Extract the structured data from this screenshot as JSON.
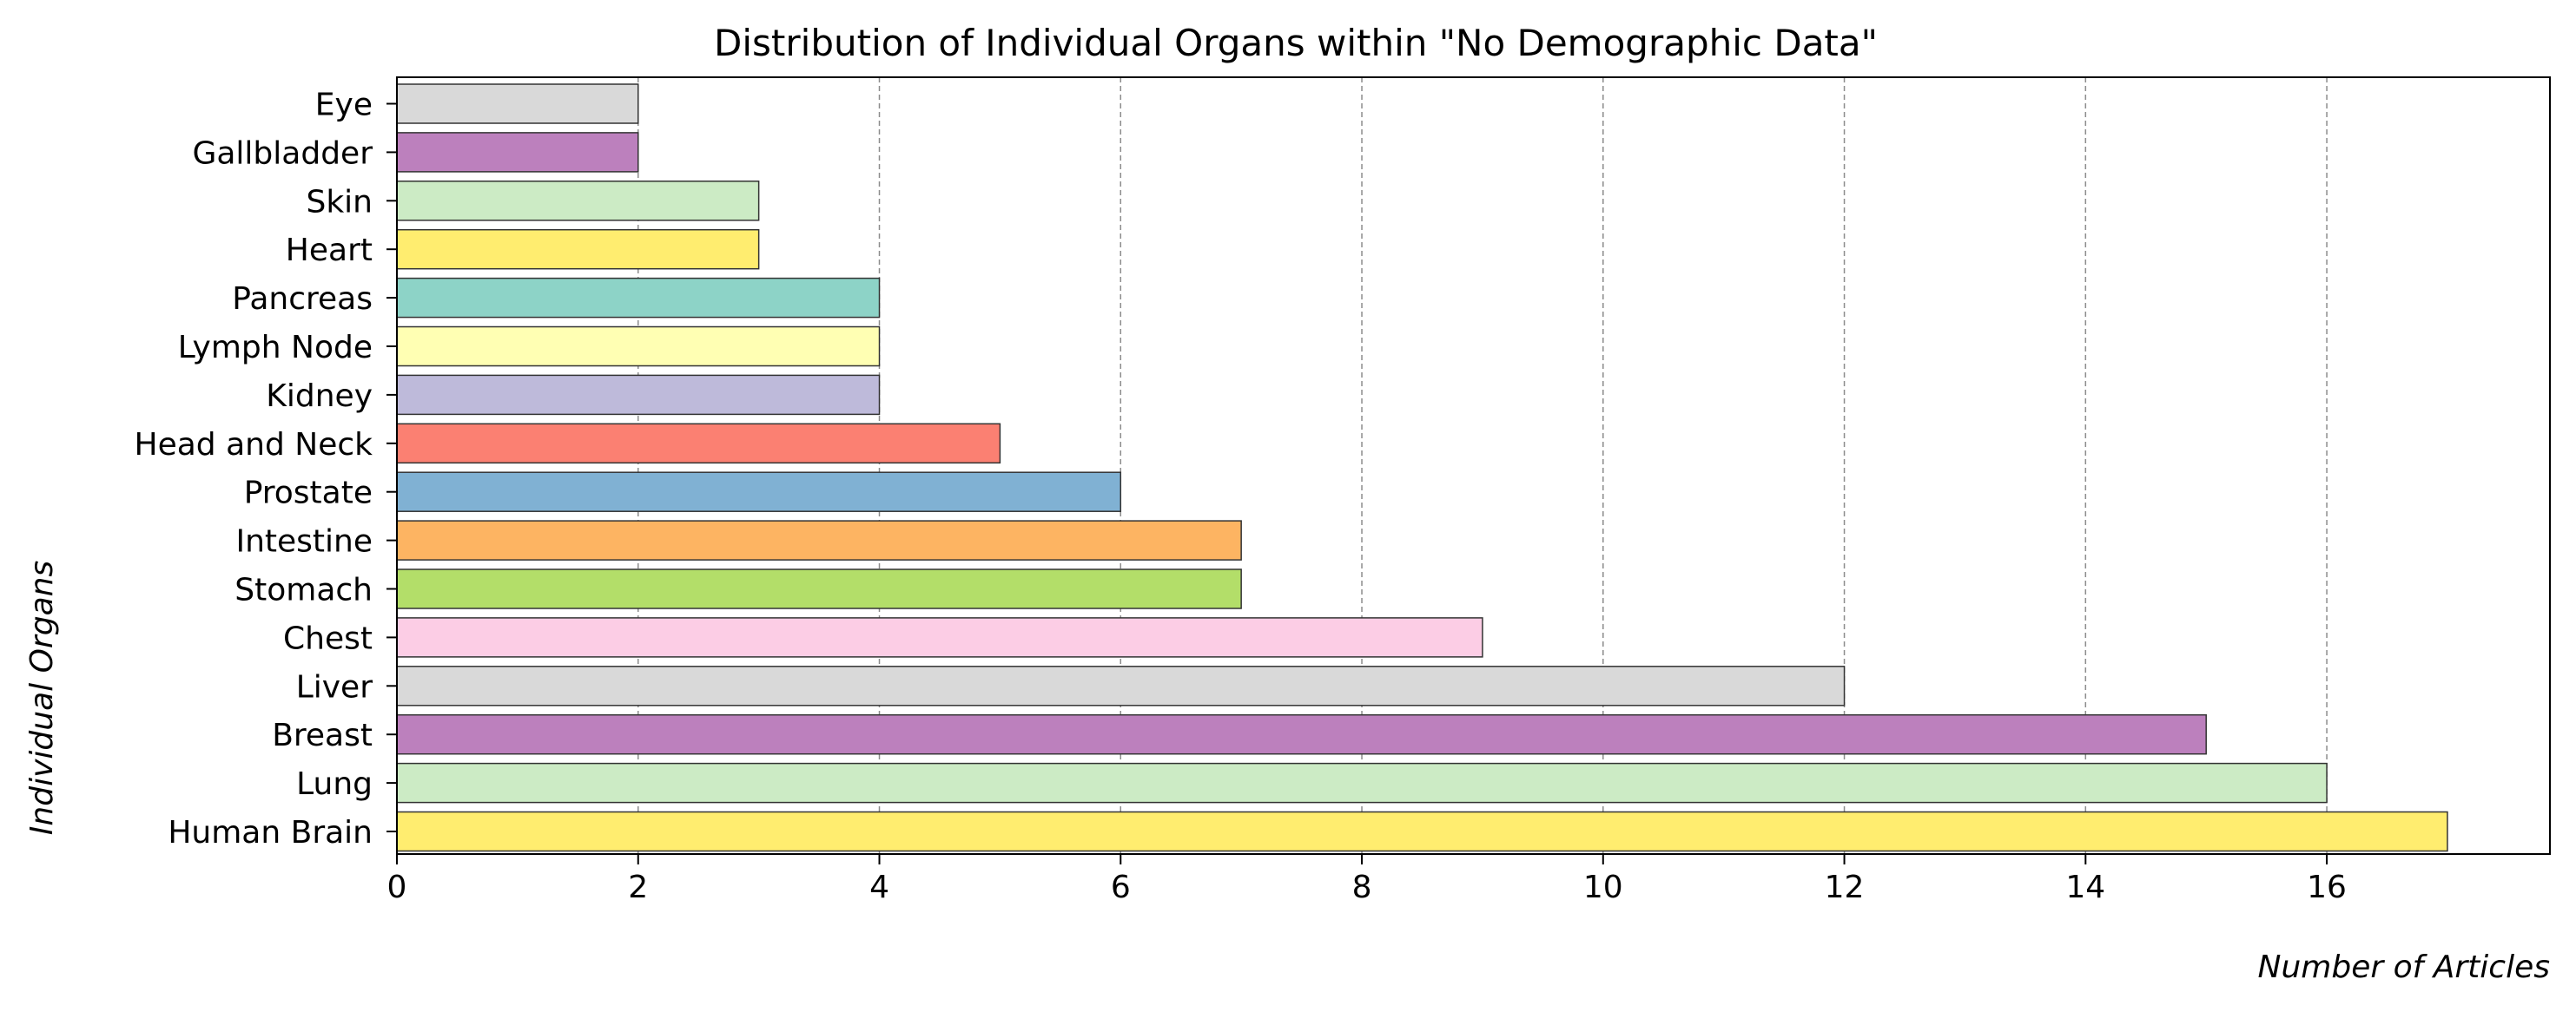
{
  "chart_data": {
    "type": "bar",
    "orientation": "horizontal",
    "title": "Distribution of Individual Organs within \"No Demographic Data\"",
    "xlabel": "Number of Articles",
    "ylabel": "Individual Organs",
    "xlim": [
      0,
      17.85
    ],
    "xticks": [
      0,
      2,
      4,
      6,
      8,
      10,
      12,
      14,
      16
    ],
    "grid": "vertical dashed",
    "categories": [
      "Human Brain",
      "Lung",
      "Breast",
      "Liver",
      "Chest",
      "Stomach",
      "Intestine",
      "Prostate",
      "Head and Neck",
      "Kidney",
      "Lymph Node",
      "Pancreas",
      "Heart",
      "Skin",
      "Gallbladder",
      "Eye"
    ],
    "values": [
      17,
      16,
      15,
      12,
      9,
      7,
      7,
      6,
      5,
      4,
      4,
      4,
      3,
      3,
      2,
      2
    ],
    "colors": [
      "#ffed6f",
      "#ccebc5",
      "#bc80bd",
      "#d9d9d9",
      "#fccde5",
      "#b3de69",
      "#fdb462",
      "#80b1d3",
      "#fb8072",
      "#bebada",
      "#ffffb3",
      "#8dd3c7",
      "#ffed6f",
      "#ccebc5",
      "#bc80bd",
      "#d9d9d9"
    ]
  }
}
